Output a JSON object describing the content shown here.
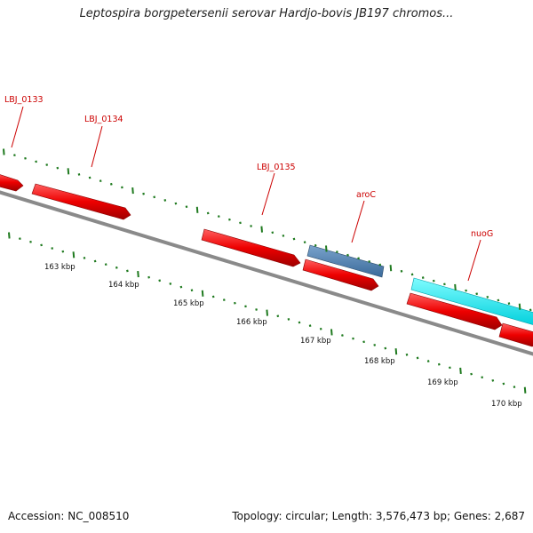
{
  "title": "Leptospira borgpetersenii serovar Hardjo-bovis JB197 chromos...",
  "footer": {
    "accession": "Accession: NC_008510",
    "topology": "Topology: circular; Length: 3,576,473 bp; Genes: 2,687"
  },
  "colors": {
    "backbone": "#888888",
    "cds": "#ee0000",
    "rna": "#4f7fb0",
    "highlight": "#00e5ee",
    "gc_marks": "#1f7a1f",
    "labels": "#cc0000"
  },
  "gene_labels": [
    {
      "text": "LBJ_0133"
    },
    {
      "text": "LBJ_0134"
    },
    {
      "text": "LBJ_0135"
    },
    {
      "text": "aroC"
    },
    {
      "text": "nuoG"
    }
  ],
  "kbp_labels": [
    "163 kbp",
    "164 kbp",
    "165 kbp",
    "166 kbp",
    "167 kbp",
    "168 kbp",
    "169 kbp",
    "170 kbp"
  ]
}
